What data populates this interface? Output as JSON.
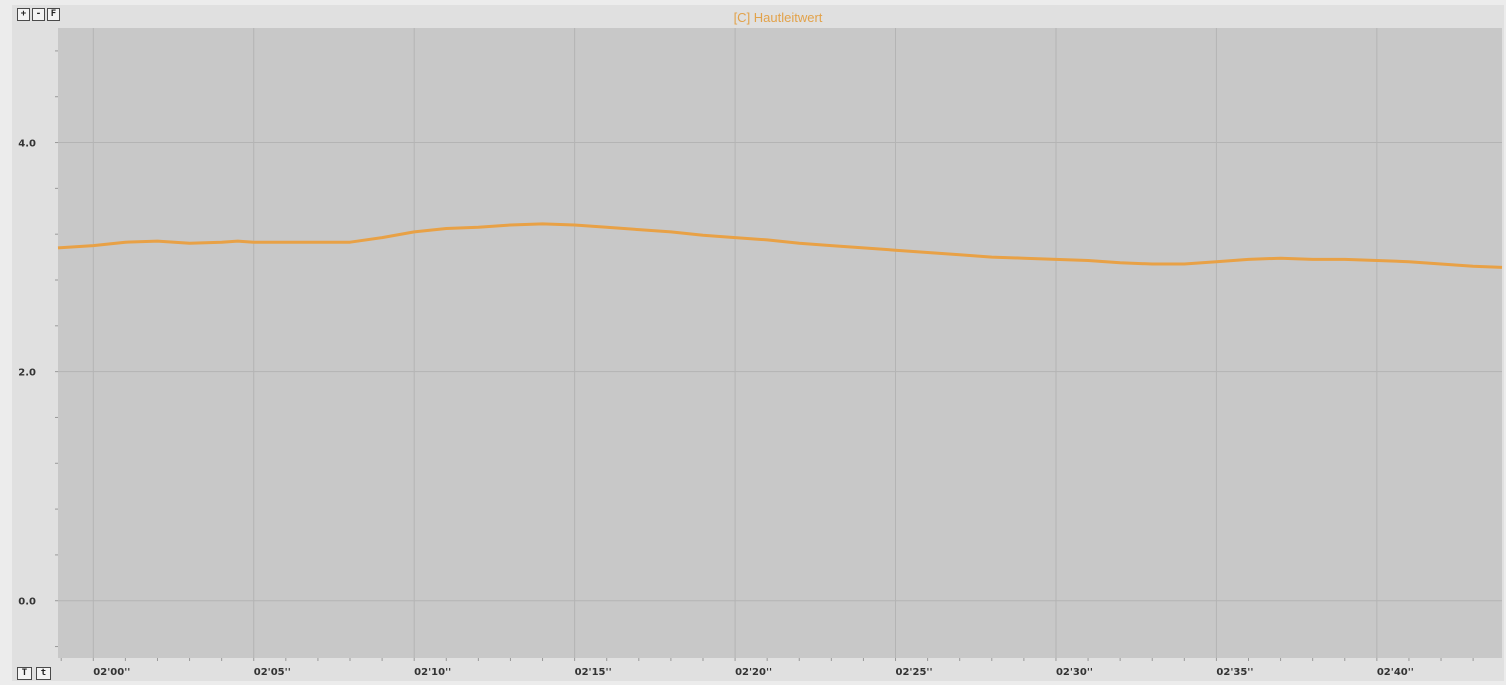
{
  "toolbar": {
    "zoom_in_label": "+",
    "zoom_out_label": "-",
    "fit_label": "F",
    "time_big_label": "T",
    "time_small_label": "t"
  },
  "colors": {
    "series": "#e8a146",
    "plot_bg": "#c8c8c8",
    "grid": "#b4b4b4"
  },
  "chart_data": {
    "type": "line",
    "title": "[C] Hautleitwert",
    "xlabel": "",
    "ylabel": "",
    "xlim": [
      118.9,
      163.9
    ],
    "ylim": [
      -0.5,
      5.0
    ],
    "grid": true,
    "legend": "none",
    "y_ticks": [
      {
        "value": 0.0,
        "label": "0.0"
      },
      {
        "value": 2.0,
        "label": "2.0"
      },
      {
        "value": 4.0,
        "label": "4.0"
      }
    ],
    "x_ticks": [
      {
        "value": 120,
        "label": "02'00''"
      },
      {
        "value": 125,
        "label": "02'05''"
      },
      {
        "value": 130,
        "label": "02'10''"
      },
      {
        "value": 135,
        "label": "02'15''"
      },
      {
        "value": 140,
        "label": "02'20''"
      },
      {
        "value": 145,
        "label": "02'25''"
      },
      {
        "value": 150,
        "label": "02'30''"
      },
      {
        "value": 155,
        "label": "02'35''"
      },
      {
        "value": 160,
        "label": "02'40''"
      }
    ],
    "series": [
      {
        "x": [
          118.9,
          120,
          121,
          122,
          123,
          124,
          124.5,
          125,
          126,
          127,
          128,
          129,
          130,
          131,
          132,
          133,
          134,
          135,
          136,
          137,
          138,
          139,
          140,
          141,
          142,
          143,
          144,
          145,
          146,
          147,
          148,
          149,
          150,
          151,
          152,
          153,
          154,
          155,
          156,
          157,
          158,
          159,
          160,
          161,
          162,
          163,
          163.9
        ],
        "y": [
          3.08,
          3.1,
          3.13,
          3.14,
          3.12,
          3.13,
          3.14,
          3.13,
          3.13,
          3.13,
          3.13,
          3.17,
          3.22,
          3.25,
          3.26,
          3.28,
          3.29,
          3.28,
          3.26,
          3.24,
          3.22,
          3.19,
          3.17,
          3.15,
          3.12,
          3.1,
          3.08,
          3.06,
          3.04,
          3.02,
          3.0,
          2.99,
          2.98,
          2.97,
          2.95,
          2.94,
          2.94,
          2.96,
          2.98,
          2.99,
          2.98,
          2.98,
          2.97,
          2.96,
          2.94,
          2.92,
          2.91
        ]
      }
    ]
  }
}
